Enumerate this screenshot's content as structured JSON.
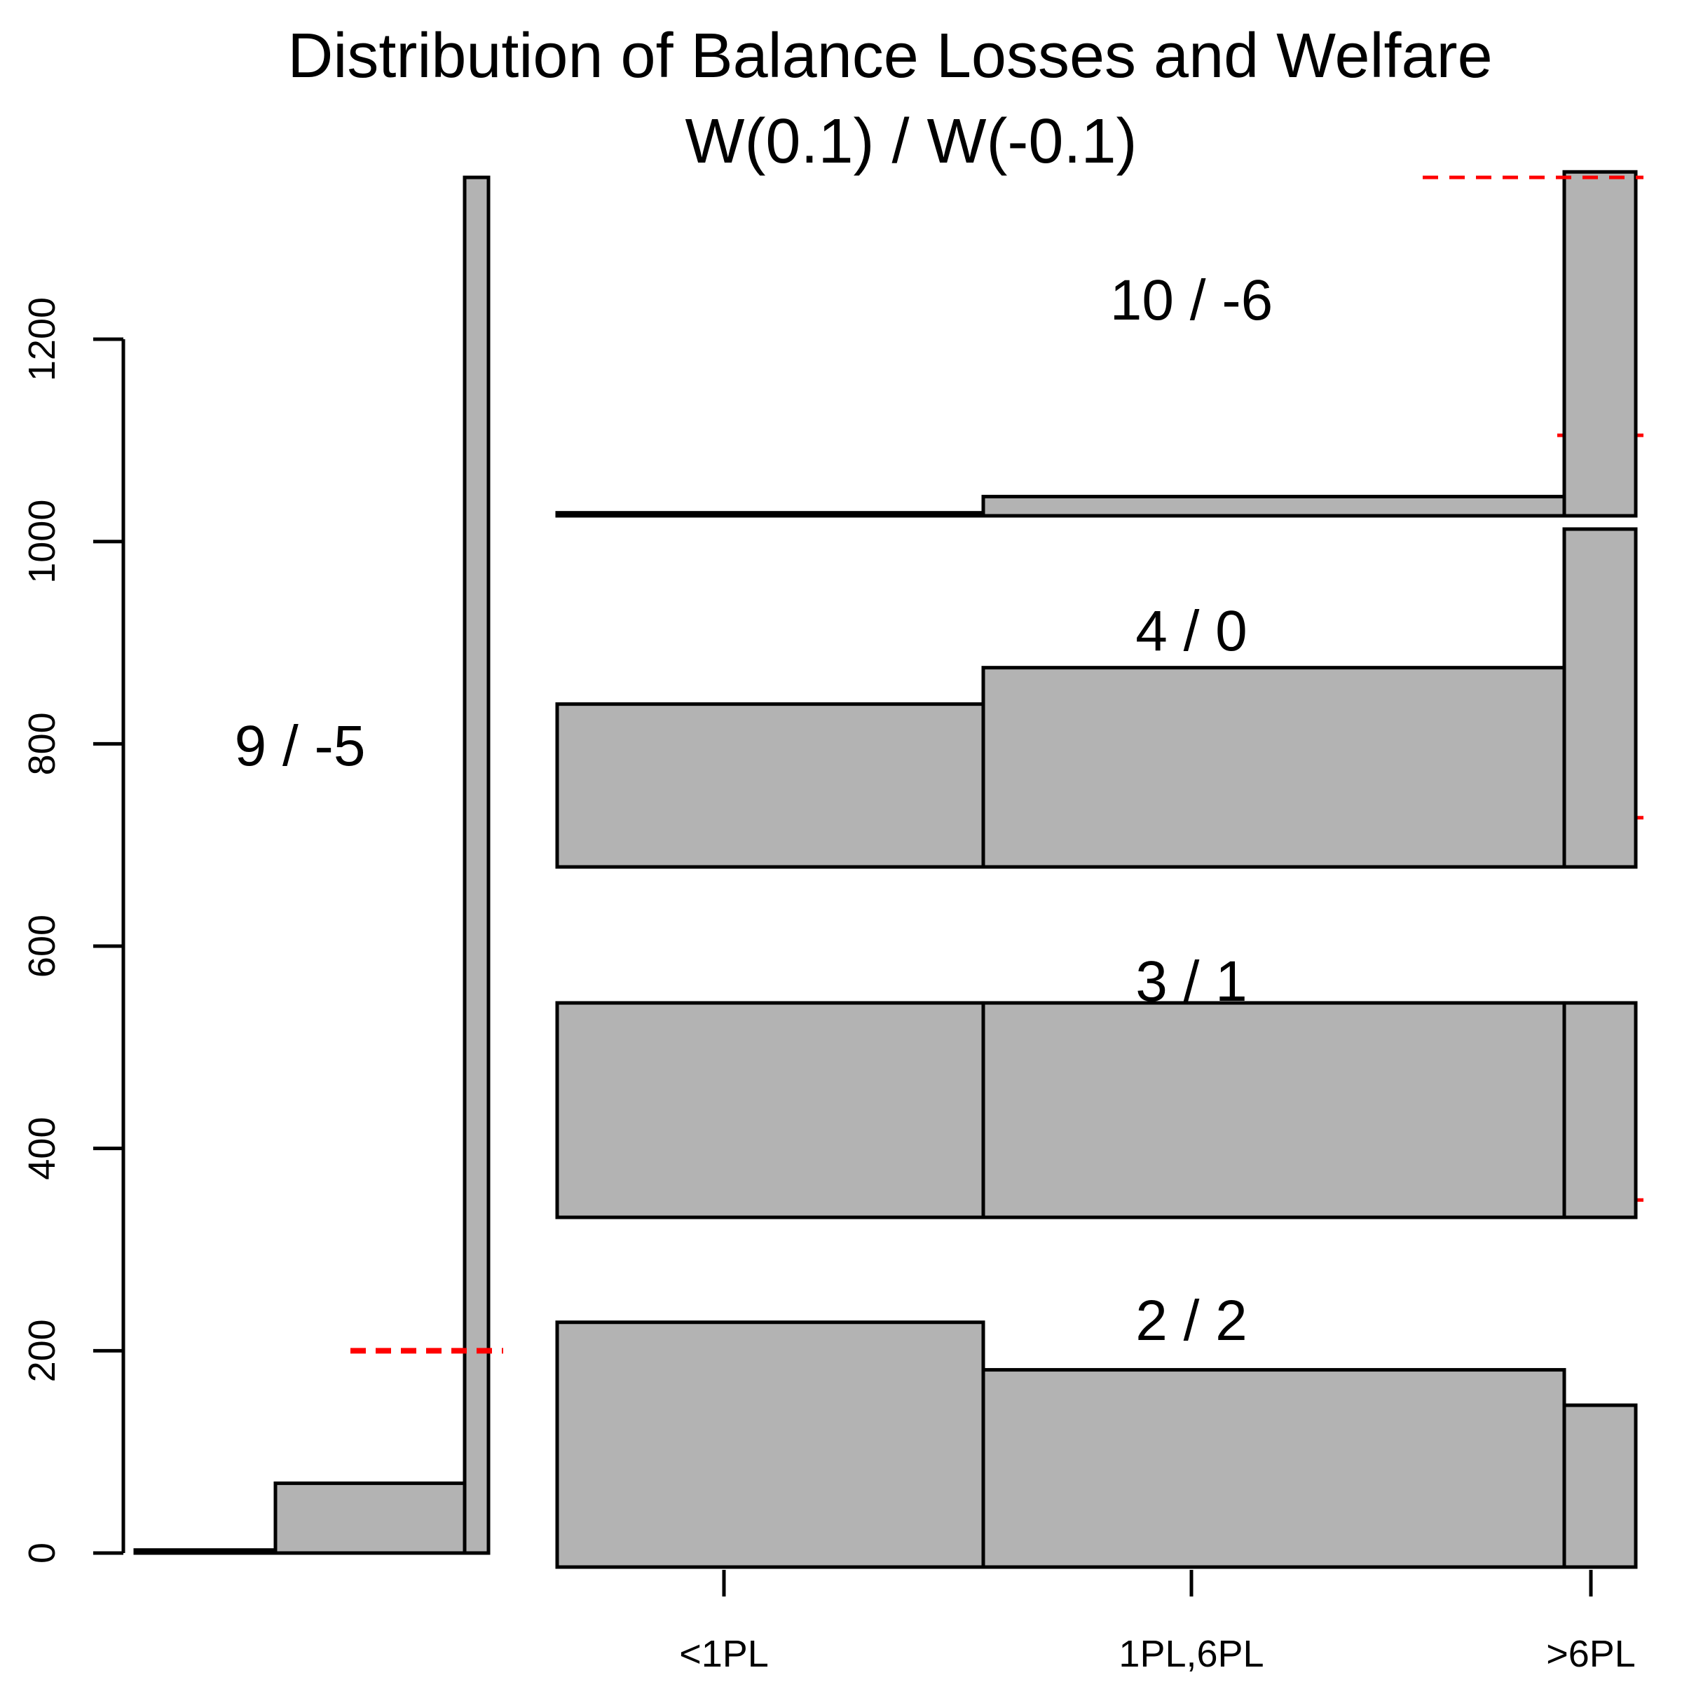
{
  "chart_data": {
    "type": "bar",
    "title": "Distribution of Balance Losses and Welfare",
    "subtitle": "W(0.1) / W(-0.1)",
    "xlabel": "",
    "ylabel": "",
    "grid": false,
    "yaxis": {
      "ylim": [
        0,
        1400
      ],
      "ticks": [
        0,
        200,
        400,
        600,
        800,
        1000,
        1200
      ]
    },
    "categories": [
      "<1PL",
      "1PL,6PL",
      ">6PL"
    ],
    "panels": [
      {
        "label": "9 / -5",
        "values": [
          3,
          69,
          1360
        ],
        "dashed_line": 200
      },
      {
        "label": "2 / 2",
        "values": [
          242,
          195,
          160
        ],
        "dashed_line": 349
      },
      {
        "label": "3 / 1",
        "values": [
          212,
          212,
          212
        ],
        "dashed_line": 727
      },
      {
        "label": "4 / 0",
        "values": [
          161,
          197,
          334
        ],
        "dashed_line": 1105
      },
      {
        "label": "10 / -6",
        "values": [
          3,
          19,
          340
        ],
        "dashed_line": 1360
      }
    ]
  }
}
